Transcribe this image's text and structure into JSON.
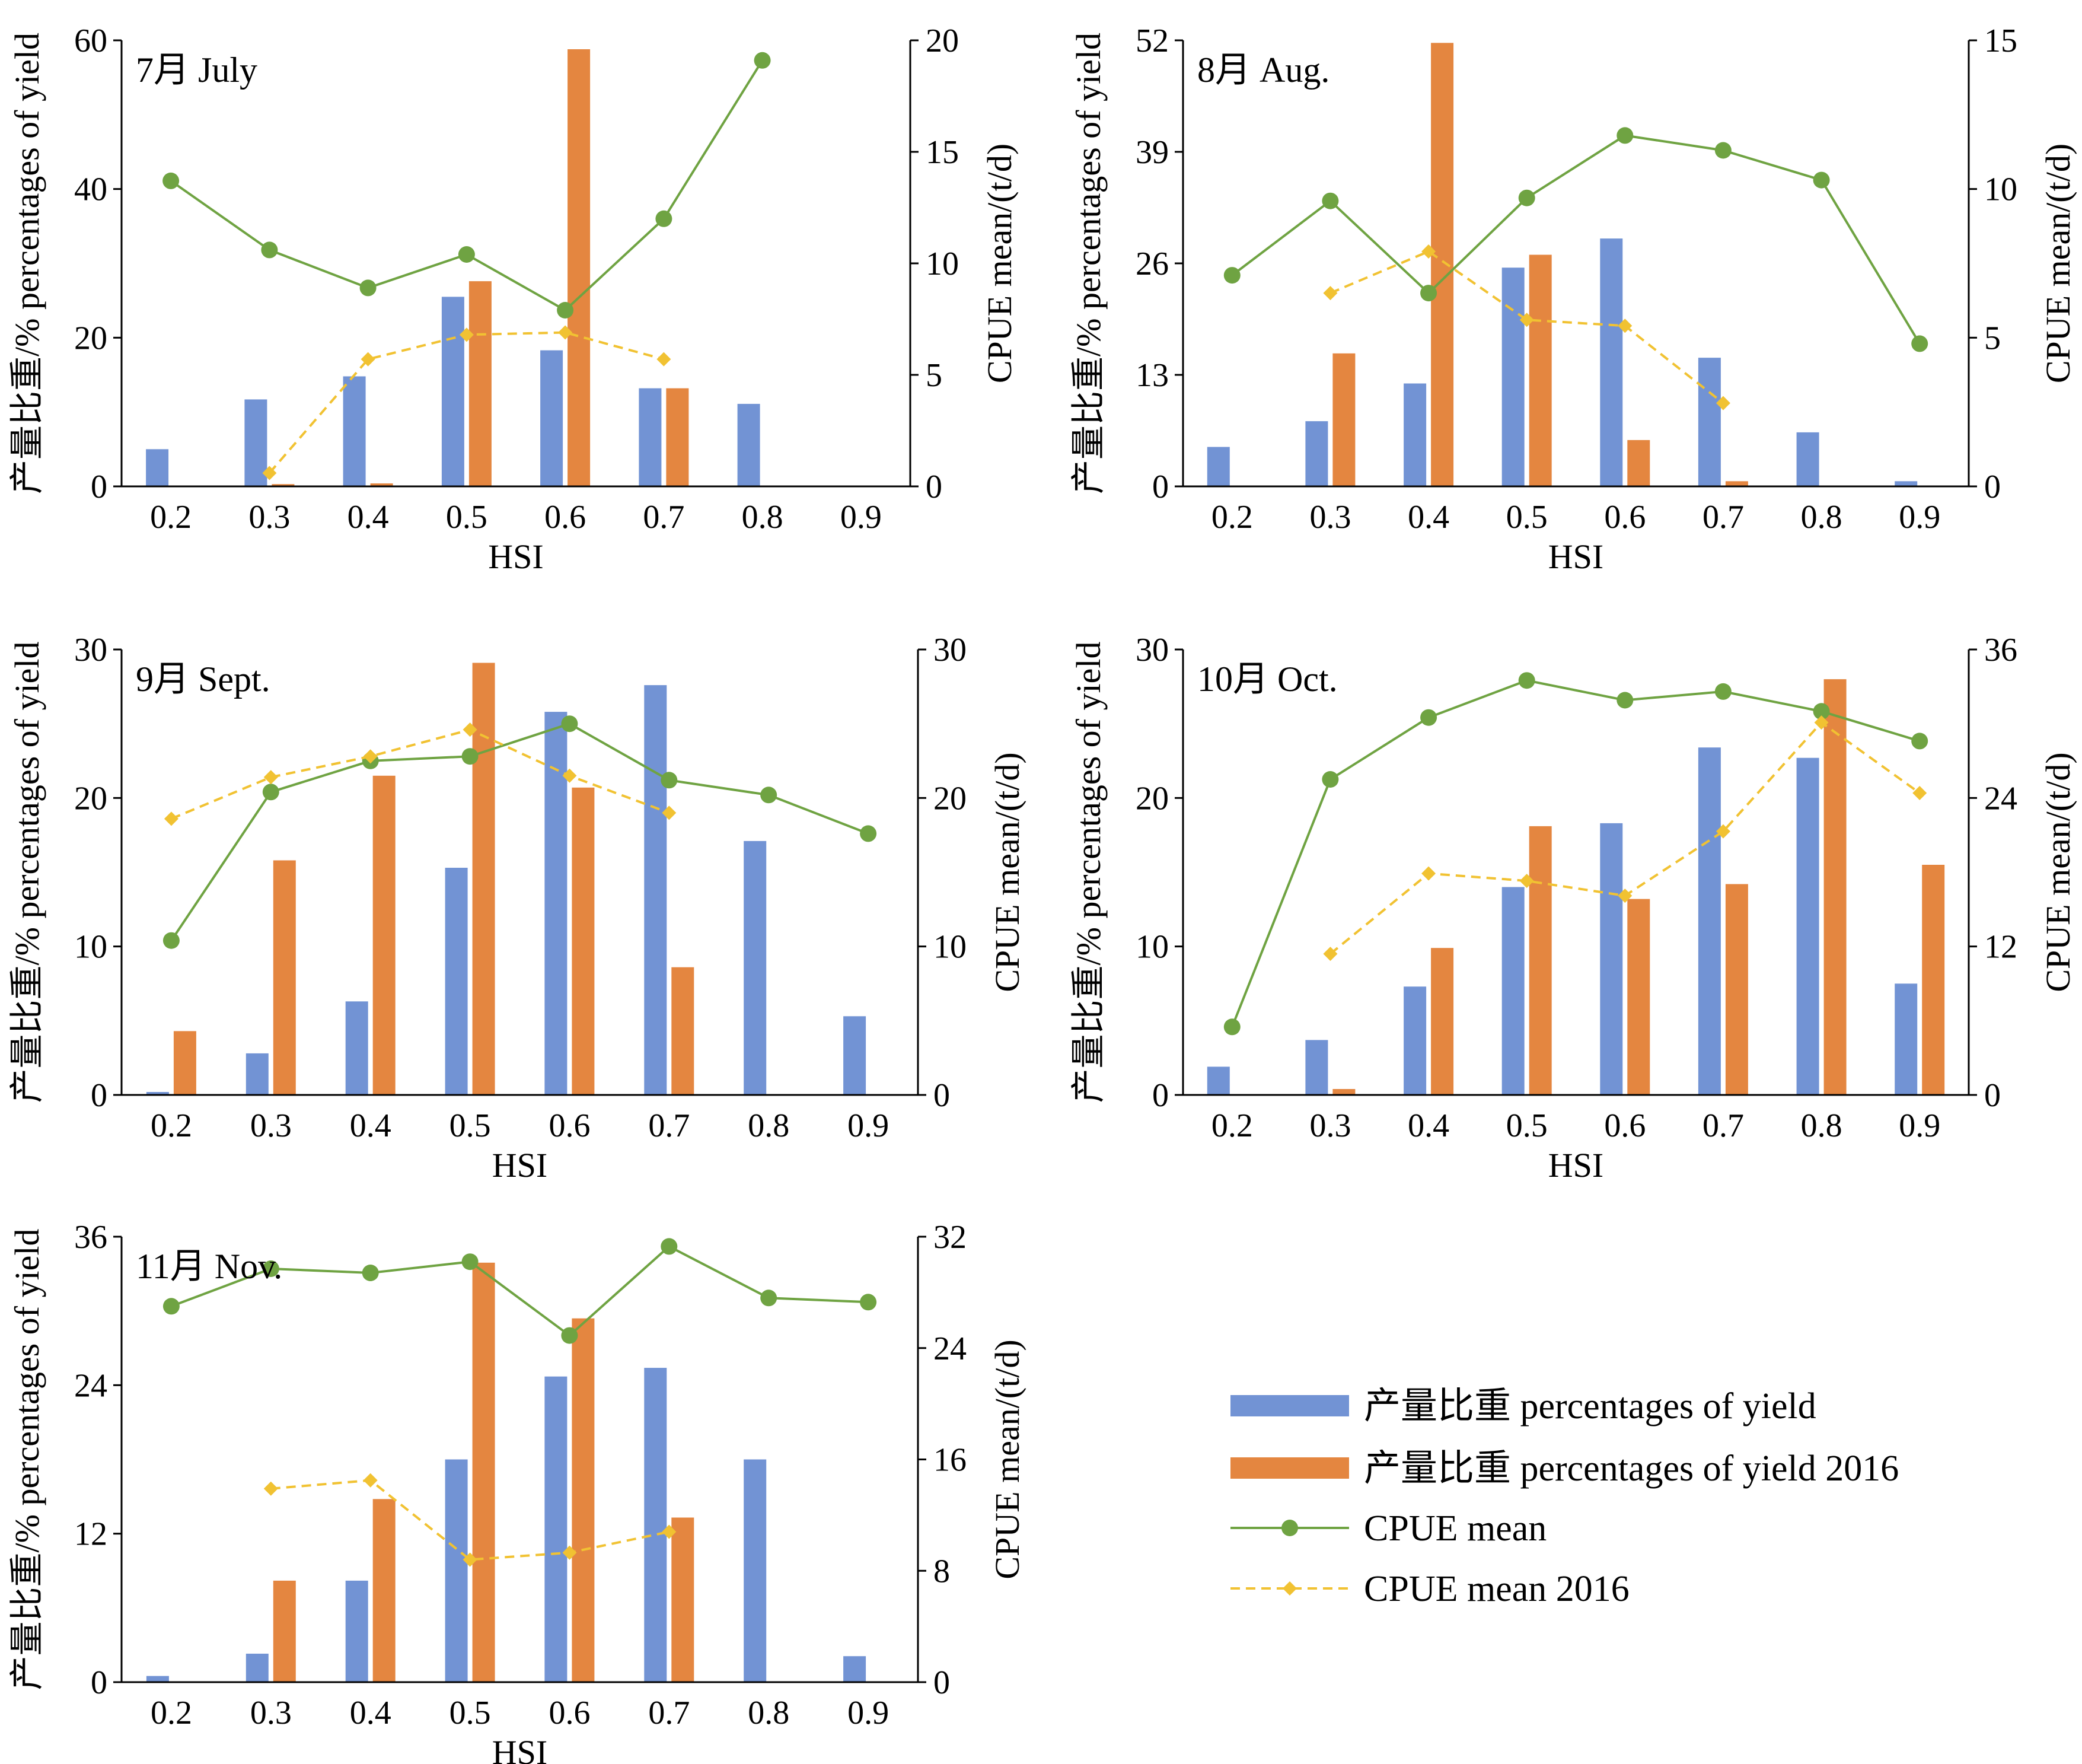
{
  "colors": {
    "yield": "#7293d4",
    "yield2016": "#e48640",
    "cpue": "#6fa342",
    "cpue2016": "#f1c232"
  },
  "legend": {
    "position": "bottom-right",
    "items": [
      {
        "key": "yield",
        "label": "产量比重 percentages of yield",
        "marker": "bar"
      },
      {
        "key": "yield2016",
        "label": "产量比重 percentages of yield 2016",
        "marker": "bar"
      },
      {
        "key": "cpue",
        "label": "CPUE mean",
        "marker": "line-circle"
      },
      {
        "key": "cpue2016",
        "label": "CPUE mean 2016",
        "marker": "dashed-diamond"
      }
    ]
  },
  "chart_data": [
    {
      "type": "bar",
      "month_label": "7月 July",
      "xlabel": "HSI",
      "ylabel": "产量比重/% percentages of yield",
      "y2label": "CPUE mean/(t/d)",
      "categories": [
        "0.2",
        "0.3",
        "0.4",
        "0.5",
        "0.6",
        "0.7",
        "0.8",
        "0.9"
      ],
      "ylim": [
        0,
        60
      ],
      "yticks": [
        0,
        20,
        40,
        60
      ],
      "y2lim": [
        0,
        20
      ],
      "y2ticks": [
        0,
        5,
        10,
        15,
        20
      ],
      "grid": false,
      "series": [
        {
          "key": "yield",
          "name": "产量比重 percentages of yield",
          "axis": "left",
          "kind": "bar",
          "values": [
            5,
            11.7,
            14.8,
            25.5,
            18.3,
            13.2,
            11.1,
            0
          ]
        },
        {
          "key": "yield2016",
          "name": "产量比重 percentages of yield 2016",
          "axis": "left",
          "kind": "bar",
          "values": [
            0,
            0.3,
            0.4,
            27.6,
            58.8,
            13.2,
            0,
            0
          ]
        },
        {
          "key": "cpue",
          "name": "CPUE mean",
          "axis": "right",
          "kind": "line",
          "values": [
            13.7,
            10.6,
            8.9,
            10.4,
            7.9,
            12,
            19.1,
            null
          ]
        },
        {
          "key": "cpue2016",
          "name": "CPUE mean 2016",
          "axis": "right",
          "kind": "dashed",
          "values": [
            null,
            0.6,
            5.7,
            6.8,
            6.9,
            5.7,
            null,
            null
          ]
        }
      ]
    },
    {
      "type": "bar",
      "month_label": "8月 Aug.",
      "xlabel": "HSI",
      "ylabel": "产量比重/% percentages of yield",
      "y2label": "CPUE mean/(t/d)",
      "categories": [
        "0.2",
        "0.3",
        "0.4",
        "0.5",
        "0.6",
        "0.7",
        "0.8",
        "0.9"
      ],
      "ylim": [
        0,
        52
      ],
      "yticks": [
        0,
        13,
        26,
        39,
        52
      ],
      "y2lim": [
        0,
        15
      ],
      "y2ticks": [
        0,
        5,
        10,
        15
      ],
      "grid": false,
      "series": [
        {
          "key": "yield",
          "name": "产量比重 percentages of yield",
          "axis": "left",
          "kind": "bar",
          "values": [
            4.6,
            7.6,
            12,
            25.5,
            28.9,
            15,
            6.3,
            0.6
          ]
        },
        {
          "key": "yield2016",
          "name": "产量比重 percentages of yield 2016",
          "axis": "left",
          "kind": "bar",
          "values": [
            0,
            15.5,
            51.7,
            27,
            5.4,
            0.6,
            0,
            0
          ]
        },
        {
          "key": "cpue",
          "name": "CPUE mean",
          "axis": "right",
          "kind": "line",
          "values": [
            7.1,
            9.6,
            6.5,
            9.7,
            11.8,
            11.3,
            10.3,
            4.8
          ]
        },
        {
          "key": "cpue2016",
          "name": "CPUE mean 2016",
          "axis": "right",
          "kind": "dashed",
          "values": [
            null,
            6.5,
            7.9,
            5.6,
            5.4,
            2.8,
            null,
            null
          ]
        }
      ]
    },
    {
      "type": "bar",
      "month_label": "9月 Sept.",
      "xlabel": "HSI",
      "ylabel": "产量比重/% percentages of yield",
      "y2label": "CPUE mean/(t/d)",
      "categories": [
        "0.2",
        "0.3",
        "0.4",
        "0.5",
        "0.6",
        "0.7",
        "0.8",
        "0.9"
      ],
      "ylim": [
        0,
        30
      ],
      "yticks": [
        0,
        10,
        20,
        30
      ],
      "y2lim": [
        0,
        30
      ],
      "y2ticks": [
        0,
        10,
        20,
        30
      ],
      "grid": false,
      "series": [
        {
          "key": "yield",
          "name": "产量比重 percentages of yield",
          "axis": "left",
          "kind": "bar",
          "values": [
            0.2,
            2.8,
            6.3,
            15.3,
            25.8,
            27.6,
            17.1,
            5.3
          ]
        },
        {
          "key": "yield2016",
          "name": "产量比重 percentages of yield 2016",
          "axis": "left",
          "kind": "bar",
          "values": [
            4.3,
            15.8,
            21.5,
            29.1,
            20.7,
            8.6,
            0,
            0
          ]
        },
        {
          "key": "cpue",
          "name": "CPUE mean",
          "axis": "right",
          "kind": "line",
          "values": [
            10.4,
            20.4,
            22.5,
            22.8,
            25,
            21.2,
            20.2,
            17.6
          ]
        },
        {
          "key": "cpue2016",
          "name": "CPUE mean 2016",
          "axis": "right",
          "kind": "dashed",
          "values": [
            18.6,
            21.4,
            22.8,
            24.6,
            21.5,
            19,
            null,
            null
          ]
        }
      ]
    },
    {
      "type": "bar",
      "month_label": "10月 Oct.",
      "xlabel": "HSI",
      "ylabel": "产量比重/% percentages of yield",
      "y2label": "CPUE mean/(t/d)",
      "categories": [
        "0.2",
        "0.3",
        "0.4",
        "0.5",
        "0.6",
        "0.7",
        "0.8",
        "0.9"
      ],
      "ylim": [
        0,
        30
      ],
      "yticks": [
        0,
        10,
        20,
        30
      ],
      "y2lim": [
        0,
        36
      ],
      "y2ticks": [
        0,
        12,
        24,
        36
      ],
      "grid": false,
      "series": [
        {
          "key": "yield",
          "name": "产量比重 percentages of yield",
          "axis": "left",
          "kind": "bar",
          "values": [
            1.9,
            3.7,
            7.3,
            14,
            18.3,
            23.4,
            22.7,
            7.5
          ]
        },
        {
          "key": "yield2016",
          "name": "产量比重 percentages of yield 2016",
          "axis": "left",
          "kind": "bar",
          "values": [
            0,
            0.4,
            9.9,
            18.1,
            13.2,
            14.2,
            28,
            15.5
          ]
        },
        {
          "key": "cpue",
          "name": "CPUE mean",
          "axis": "right",
          "kind": "line",
          "values": [
            5.5,
            25.5,
            30.5,
            33.5,
            31.9,
            32.6,
            31,
            28.6
          ]
        },
        {
          "key": "cpue2016",
          "name": "CPUE mean 2016",
          "axis": "right",
          "kind": "dashed",
          "values": [
            null,
            11.4,
            17.9,
            17.3,
            16.1,
            21.3,
            30.1,
            24.4
          ]
        }
      ]
    },
    {
      "type": "bar",
      "month_label": "11月 Nov.",
      "xlabel": "HSI",
      "ylabel": "产量比重/% percentages of yield",
      "y2label": "CPUE mean/(t/d)",
      "categories": [
        "0.2",
        "0.3",
        "0.4",
        "0.5",
        "0.6",
        "0.7",
        "0.8",
        "0.9"
      ],
      "ylim": [
        0,
        36
      ],
      "yticks": [
        0,
        12,
        24,
        36
      ],
      "y2lim": [
        0,
        32
      ],
      "y2ticks": [
        0,
        8,
        16,
        24,
        32
      ],
      "grid": false,
      "series": [
        {
          "key": "yield",
          "name": "产量比重 percentages of yield",
          "axis": "left",
          "kind": "bar",
          "values": [
            0.5,
            2.3,
            8.2,
            18,
            24.7,
            25.4,
            18,
            2.1
          ]
        },
        {
          "key": "yield2016",
          "name": "产量比重 percentages of yield 2016",
          "axis": "left",
          "kind": "bar",
          "values": [
            0,
            8.2,
            14.8,
            33.9,
            29.4,
            13.3,
            0,
            0
          ]
        },
        {
          "key": "cpue",
          "name": "CPUE mean",
          "axis": "right",
          "kind": "line",
          "values": [
            27,
            29.7,
            29.4,
            30.2,
            24.9,
            31.3,
            27.6,
            27.3
          ]
        },
        {
          "key": "cpue2016",
          "name": "CPUE mean 2016",
          "axis": "right",
          "kind": "dashed",
          "values": [
            null,
            13.9,
            14.5,
            8.8,
            9.3,
            10.8,
            null,
            null
          ]
        }
      ]
    }
  ]
}
